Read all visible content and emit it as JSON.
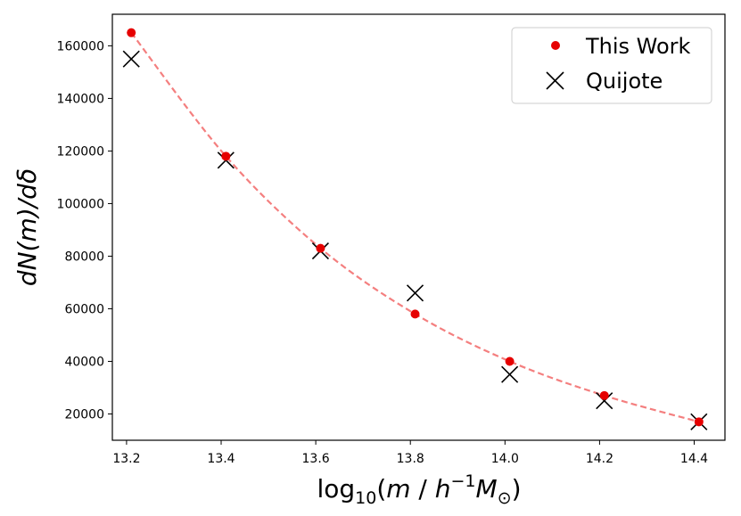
{
  "chart_data": {
    "type": "line",
    "x": [
      13.21,
      13.41,
      13.61,
      13.81,
      14.01,
      14.21,
      14.41
    ],
    "series": [
      {
        "name": "This Work",
        "marker": "dot",
        "color": "#e60000",
        "line_color": "#f47f7f",
        "values": [
          165000,
          118000,
          83000,
          58000,
          40000,
          27000,
          17000
        ]
      },
      {
        "name": "Quijote",
        "marker": "x",
        "color": "#000000",
        "values": [
          155000,
          116500,
          82000,
          66000,
          35000,
          25000,
          17000
        ]
      }
    ],
    "xlim": [
      13.17,
      14.465
    ],
    "ylim": [
      10000,
      172000
    ],
    "x_ticks": [
      13.2,
      13.4,
      13.6,
      13.8,
      14.0,
      14.2,
      14.4
    ],
    "x_tick_labels": [
      "13.2",
      "13.4",
      "13.6",
      "13.8",
      "14.0",
      "14.2",
      "14.4"
    ],
    "y_ticks": [
      20000,
      40000,
      60000,
      80000,
      100000,
      120000,
      140000,
      160000
    ],
    "y_tick_labels": [
      "20000",
      "40000",
      "60000",
      "80000",
      "100000",
      "120000",
      "140000",
      "160000"
    ],
    "xlabel": {
      "prefix": "log",
      "sub": "10",
      "open": "(",
      "m": "m",
      "slash": " / ",
      "h": "h",
      "exp": "−1",
      "M": "M",
      "odot": "⊙",
      "close": ")"
    },
    "ylabel": "dN(m)/dδ",
    "legend": {
      "position": "top-right",
      "entries": [
        "This Work",
        "Quijote"
      ]
    },
    "grid": false
  }
}
